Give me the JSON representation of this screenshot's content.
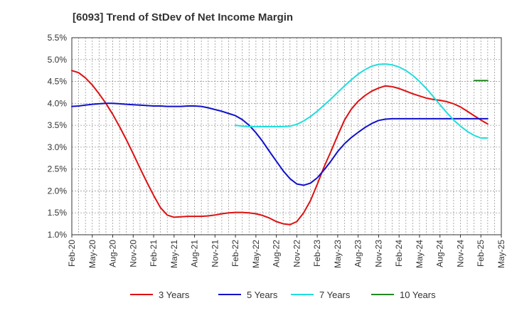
{
  "chart_data": {
    "type": "line",
    "title": "[6093]  Trend of StDev of Net Income Margin",
    "xlabel": "",
    "ylabel": "",
    "x_ticks": [
      "Feb-20",
      "May-20",
      "Aug-20",
      "Nov-20",
      "Feb-21",
      "May-21",
      "Aug-21",
      "Nov-21",
      "Feb-22",
      "May-22",
      "Aug-22",
      "Nov-22",
      "Feb-23",
      "May-23",
      "Aug-23",
      "Nov-23",
      "Feb-24",
      "May-24",
      "Aug-24",
      "Nov-24",
      "Feb-25",
      "May-25"
    ],
    "y_ticks": [
      "1.0%",
      "1.5%",
      "2.0%",
      "2.5%",
      "3.0%",
      "3.5%",
      "4.0%",
      "4.5%",
      "5.0%",
      "5.5%"
    ],
    "ylim": [
      1.0,
      5.5
    ],
    "y_unit": "%",
    "grid": "dashed",
    "legend_position": "bottom",
    "series": [
      {
        "name": "3 Years",
        "color": "#dd1111",
        "points": [
          [
            "Feb-20",
            4.75
          ],
          [
            "Mar-20",
            4.7
          ],
          [
            "Apr-20",
            4.58
          ],
          [
            "May-20",
            4.42
          ],
          [
            "Jun-20",
            4.22
          ],
          [
            "Jul-20",
            4.0
          ],
          [
            "Aug-20",
            3.75
          ],
          [
            "Sep-20",
            3.47
          ],
          [
            "Oct-20",
            3.17
          ],
          [
            "Nov-20",
            2.85
          ],
          [
            "Dec-20",
            2.52
          ],
          [
            "Jan-21",
            2.2
          ],
          [
            "Feb-21",
            1.9
          ],
          [
            "Mar-21",
            1.62
          ],
          [
            "Apr-21",
            1.45
          ],
          [
            "May-21",
            1.4
          ],
          [
            "Jun-21",
            1.41
          ],
          [
            "Jul-21",
            1.42
          ],
          [
            "Aug-21",
            1.42
          ],
          [
            "Sep-21",
            1.42
          ],
          [
            "Oct-21",
            1.43
          ],
          [
            "Nov-21",
            1.45
          ],
          [
            "Dec-21",
            1.48
          ],
          [
            "Jan-22",
            1.5
          ],
          [
            "Feb-22",
            1.51
          ],
          [
            "Mar-22",
            1.51
          ],
          [
            "Apr-22",
            1.5
          ],
          [
            "May-22",
            1.48
          ],
          [
            "Jun-22",
            1.44
          ],
          [
            "Jul-22",
            1.38
          ],
          [
            "Aug-22",
            1.3
          ],
          [
            "Sep-22",
            1.25
          ],
          [
            "Oct-22",
            1.23
          ],
          [
            "Nov-22",
            1.3
          ],
          [
            "Dec-22",
            1.5
          ],
          [
            "Jan-23",
            1.78
          ],
          [
            "Feb-23",
            2.15
          ],
          [
            "Mar-23",
            2.55
          ],
          [
            "Apr-23",
            2.9
          ],
          [
            "May-23",
            3.27
          ],
          [
            "Jun-23",
            3.62
          ],
          [
            "Jul-23",
            3.87
          ],
          [
            "Aug-23",
            4.05
          ],
          [
            "Sep-23",
            4.18
          ],
          [
            "Oct-23",
            4.28
          ],
          [
            "Nov-23",
            4.35
          ],
          [
            "Dec-23",
            4.4
          ],
          [
            "Jan-24",
            4.38
          ],
          [
            "Feb-24",
            4.34
          ],
          [
            "Mar-24",
            4.28
          ],
          [
            "Apr-24",
            4.22
          ],
          [
            "May-24",
            4.17
          ],
          [
            "Jun-24",
            4.12
          ],
          [
            "Jul-24",
            4.09
          ],
          [
            "Aug-24",
            4.07
          ],
          [
            "Sep-24",
            4.04
          ],
          [
            "Oct-24",
            3.99
          ],
          [
            "Nov-24",
            3.92
          ],
          [
            "Dec-24",
            3.82
          ],
          [
            "Jan-25",
            3.72
          ],
          [
            "Feb-25",
            3.62
          ],
          [
            "Mar-25",
            3.53
          ]
        ]
      },
      {
        "name": "5 Years",
        "color": "#1111cc",
        "points": [
          [
            "Feb-20",
            3.93
          ],
          [
            "Mar-20",
            3.94
          ],
          [
            "Apr-20",
            3.96
          ],
          [
            "May-20",
            3.98
          ],
          [
            "Jun-20",
            3.99
          ],
          [
            "Jul-20",
            4.0
          ],
          [
            "Aug-20",
            4.0
          ],
          [
            "Sep-20",
            3.99
          ],
          [
            "Oct-20",
            3.98
          ],
          [
            "Nov-20",
            3.97
          ],
          [
            "Dec-20",
            3.96
          ],
          [
            "Jan-21",
            3.95
          ],
          [
            "Feb-21",
            3.94
          ],
          [
            "Mar-21",
            3.94
          ],
          [
            "Apr-21",
            3.93
          ],
          [
            "May-21",
            3.93
          ],
          [
            "Jun-21",
            3.93
          ],
          [
            "Jul-21",
            3.94
          ],
          [
            "Aug-21",
            3.94
          ],
          [
            "Sep-21",
            3.93
          ],
          [
            "Oct-21",
            3.9
          ],
          [
            "Nov-21",
            3.86
          ],
          [
            "Dec-21",
            3.82
          ],
          [
            "Jan-22",
            3.77
          ],
          [
            "Feb-22",
            3.72
          ],
          [
            "Mar-22",
            3.63
          ],
          [
            "Apr-22",
            3.5
          ],
          [
            "May-22",
            3.33
          ],
          [
            "Jun-22",
            3.13
          ],
          [
            "Jul-22",
            2.9
          ],
          [
            "Aug-22",
            2.68
          ],
          [
            "Sep-22",
            2.46
          ],
          [
            "Oct-22",
            2.28
          ],
          [
            "Nov-22",
            2.16
          ],
          [
            "Dec-22",
            2.13
          ],
          [
            "Jan-23",
            2.18
          ],
          [
            "Feb-23",
            2.3
          ],
          [
            "Mar-23",
            2.48
          ],
          [
            "Apr-23",
            2.68
          ],
          [
            "May-23",
            2.9
          ],
          [
            "Jun-23",
            3.08
          ],
          [
            "Jul-23",
            3.22
          ],
          [
            "Aug-23",
            3.34
          ],
          [
            "Sep-23",
            3.45
          ],
          [
            "Oct-23",
            3.54
          ],
          [
            "Nov-23",
            3.61
          ],
          [
            "Dec-23",
            3.64
          ],
          [
            "Jan-24",
            3.65
          ],
          [
            "Feb-24",
            3.65
          ],
          [
            "Mar-24",
            3.65
          ],
          [
            "Apr-24",
            3.65
          ],
          [
            "May-24",
            3.65
          ],
          [
            "Jun-24",
            3.65
          ],
          [
            "Jul-24",
            3.65
          ],
          [
            "Aug-24",
            3.65
          ],
          [
            "Sep-24",
            3.65
          ],
          [
            "Oct-24",
            3.65
          ],
          [
            "Nov-24",
            3.65
          ],
          [
            "Dec-24",
            3.65
          ],
          [
            "Jan-25",
            3.65
          ],
          [
            "Feb-25",
            3.65
          ],
          [
            "Mar-25",
            3.65
          ]
        ]
      },
      {
        "name": "7 Years",
        "color": "#22dddd",
        "points": [
          [
            "Feb-22",
            3.5
          ],
          [
            "Mar-22",
            3.48
          ],
          [
            "Apr-22",
            3.47
          ],
          [
            "May-22",
            3.47
          ],
          [
            "Jun-22",
            3.47
          ],
          [
            "Jul-22",
            3.47
          ],
          [
            "Aug-22",
            3.47
          ],
          [
            "Sep-22",
            3.47
          ],
          [
            "Oct-22",
            3.48
          ],
          [
            "Nov-22",
            3.52
          ],
          [
            "Dec-22",
            3.6
          ],
          [
            "Jan-23",
            3.7
          ],
          [
            "Feb-23",
            3.82
          ],
          [
            "Mar-23",
            3.96
          ],
          [
            "Apr-23",
            4.1
          ],
          [
            "May-23",
            4.25
          ],
          [
            "Jun-23",
            4.4
          ],
          [
            "Jul-23",
            4.54
          ],
          [
            "Aug-23",
            4.67
          ],
          [
            "Sep-23",
            4.77
          ],
          [
            "Oct-23",
            4.85
          ],
          [
            "Nov-23",
            4.89
          ],
          [
            "Dec-23",
            4.9
          ],
          [
            "Jan-24",
            4.88
          ],
          [
            "Feb-24",
            4.83
          ],
          [
            "Mar-24",
            4.75
          ],
          [
            "Apr-24",
            4.64
          ],
          [
            "May-24",
            4.5
          ],
          [
            "Jun-24",
            4.34
          ],
          [
            "Jul-24",
            4.16
          ],
          [
            "Aug-24",
            3.97
          ],
          [
            "Sep-24",
            3.79
          ],
          [
            "Oct-24",
            3.62
          ],
          [
            "Nov-24",
            3.48
          ],
          [
            "Dec-24",
            3.36
          ],
          [
            "Jan-25",
            3.27
          ],
          [
            "Feb-25",
            3.21
          ],
          [
            "Mar-25",
            3.21
          ]
        ]
      },
      {
        "name": "10 Years",
        "color": "#228822",
        "points": [
          [
            "Jan-25",
            4.52
          ],
          [
            "Feb-25",
            4.52
          ],
          [
            "Mar-25",
            4.52
          ]
        ]
      }
    ]
  }
}
